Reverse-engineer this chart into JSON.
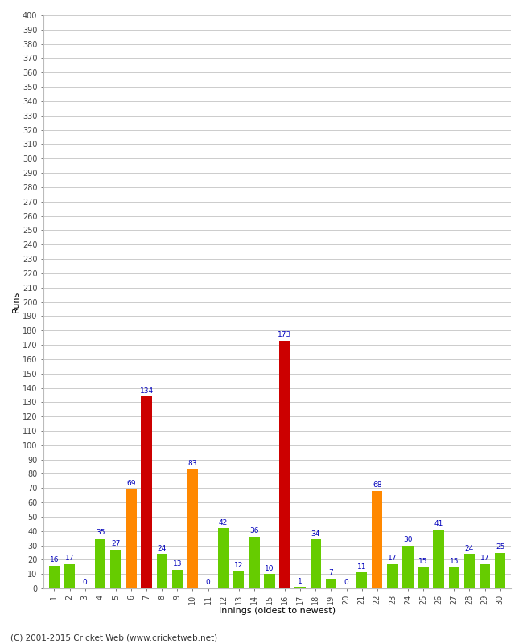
{
  "innings": [
    1,
    2,
    3,
    4,
    5,
    6,
    7,
    8,
    9,
    10,
    11,
    12,
    13,
    14,
    15,
    16,
    17,
    18,
    19,
    20,
    21,
    22,
    23,
    24,
    25,
    26,
    27,
    28,
    29,
    30
  ],
  "values": [
    16,
    17,
    0,
    35,
    27,
    69,
    134,
    24,
    13,
    83,
    0,
    42,
    12,
    36,
    10,
    173,
    1,
    34,
    7,
    0,
    11,
    68,
    17,
    30,
    15,
    41,
    15,
    24,
    17,
    25
  ],
  "colors": [
    "#66cc00",
    "#66cc00",
    "#66cc00",
    "#66cc00",
    "#66cc00",
    "#ff8800",
    "#cc0000",
    "#66cc00",
    "#66cc00",
    "#ff8800",
    "#66cc00",
    "#66cc00",
    "#66cc00",
    "#66cc00",
    "#66cc00",
    "#cc0000",
    "#66cc00",
    "#66cc00",
    "#66cc00",
    "#66cc00",
    "#66cc00",
    "#ff8800",
    "#66cc00",
    "#66cc00",
    "#66cc00",
    "#66cc00",
    "#66cc00",
    "#66cc00",
    "#66cc00",
    "#66cc00"
  ],
  "ylabel": "Runs",
  "xlabel": "Innings (oldest to newest)",
  "ylim": [
    0,
    400
  ],
  "ytick_step": 10,
  "background_color": "#ffffff",
  "grid_color": "#cccccc",
  "label_color": "#0000bb",
  "footer": "(C) 2001-2015 Cricket Web (www.cricketweb.net)",
  "fig_width": 6.5,
  "fig_height": 8.0,
  "dpi": 100
}
